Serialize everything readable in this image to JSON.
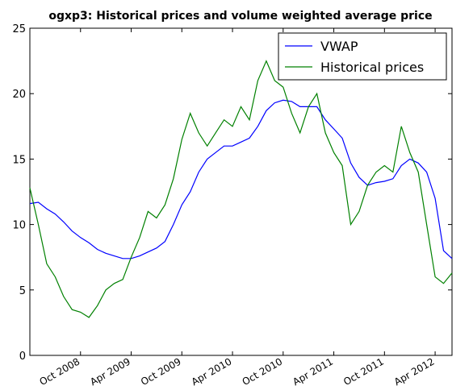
{
  "chart_data": {
    "type": "line",
    "title": "ogxp3: Historical prices and volume weighted average price",
    "x": [
      "2008-04",
      "2008-05",
      "2008-06",
      "2008-07",
      "2008-08",
      "2008-09",
      "2008-10",
      "2008-11",
      "2008-12",
      "2009-01",
      "2009-02",
      "2009-03",
      "2009-04",
      "2009-05",
      "2009-06",
      "2009-07",
      "2009-08",
      "2009-09",
      "2009-10",
      "2009-11",
      "2009-12",
      "2010-01",
      "2010-02",
      "2010-03",
      "2010-04",
      "2010-05",
      "2010-06",
      "2010-07",
      "2010-08",
      "2010-09",
      "2010-10",
      "2010-11",
      "2010-12",
      "2011-01",
      "2011-02",
      "2011-03",
      "2011-04",
      "2011-05",
      "2011-06",
      "2011-07",
      "2011-08",
      "2011-09",
      "2011-10",
      "2011-11",
      "2011-12",
      "2012-01",
      "2012-02",
      "2012-03",
      "2012-04",
      "2012-05",
      "2012-06"
    ],
    "series": [
      {
        "name": "VWAP",
        "color": "#0000ff",
        "values": [
          11.6,
          11.7,
          11.2,
          10.8,
          10.2,
          9.5,
          9.0,
          8.6,
          8.1,
          7.8,
          7.6,
          7.4,
          7.4,
          7.6,
          7.9,
          8.2,
          8.7,
          10.0,
          11.5,
          12.5,
          14.0,
          15.0,
          15.5,
          16.0,
          16.0,
          16.3,
          16.6,
          17.5,
          18.7,
          19.3,
          19.5,
          19.4,
          19.0,
          19.0,
          19.0,
          18.0,
          17.3,
          16.6,
          14.7,
          13.6,
          13.0,
          13.2,
          13.3,
          13.5,
          14.5,
          15.0,
          14.7,
          14.0,
          12.0,
          8.0,
          7.4
        ]
      },
      {
        "name": "Historical prices",
        "color": "#008000",
        "values": [
          12.8,
          10,
          7,
          6,
          4.5,
          3.5,
          3.3,
          2.9,
          3.8,
          5,
          5.5,
          5.8,
          7.5,
          9,
          11,
          10.5,
          11.5,
          13.5,
          16.5,
          18.5,
          17,
          16,
          17,
          18,
          17.5,
          19,
          18,
          21,
          22.5,
          21,
          20.5,
          18.5,
          17,
          19,
          20,
          17,
          15.5,
          14.5,
          10,
          11,
          13,
          14,
          14.5,
          14,
          17.5,
          15.5,
          14,
          10,
          6,
          5.5,
          6.3
        ]
      }
    ],
    "xlim": [
      "2008-04",
      "2012-06"
    ],
    "xticks": [
      {
        "value": "2008-10",
        "label": "Oct 2008"
      },
      {
        "value": "2009-04",
        "label": "Apr 2009"
      },
      {
        "value": "2009-10",
        "label": "Oct 2009"
      },
      {
        "value": "2010-04",
        "label": "Apr 2010"
      },
      {
        "value": "2010-10",
        "label": "Oct 2010"
      },
      {
        "value": "2011-04",
        "label": "Apr 2011"
      },
      {
        "value": "2011-10",
        "label": "Oct 2011"
      },
      {
        "value": "2012-04",
        "label": "Apr 2012"
      }
    ],
    "ylim": [
      0,
      25
    ],
    "yticks": [
      0,
      5,
      10,
      15,
      20,
      25
    ],
    "legend": "upper right"
  }
}
